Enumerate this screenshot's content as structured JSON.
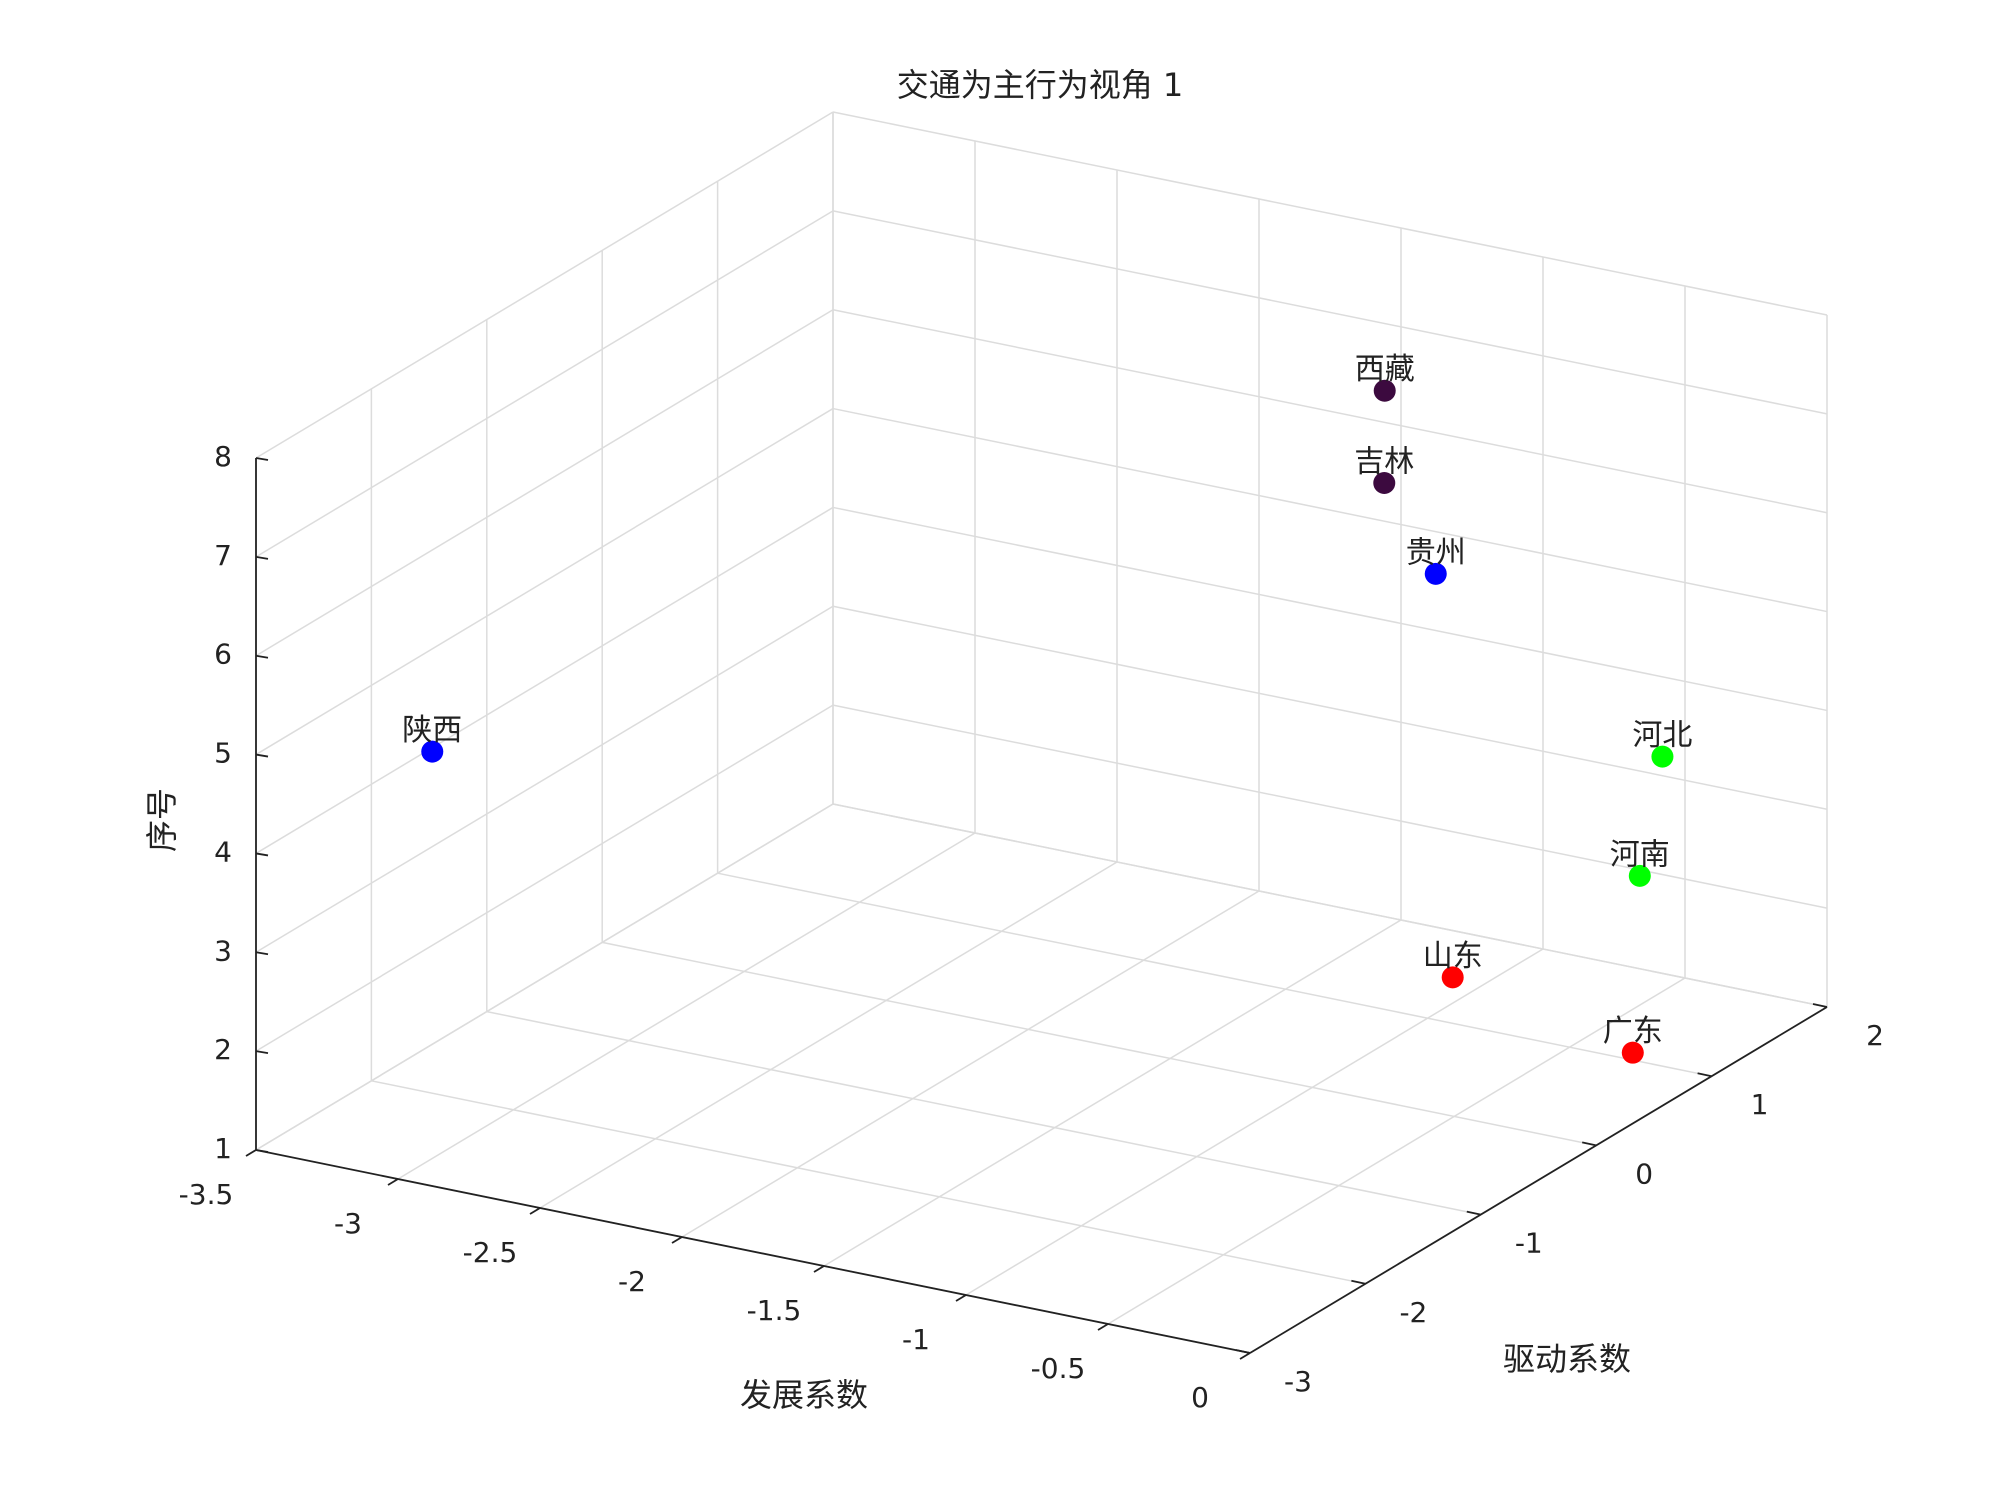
{
  "chart_data": {
    "type": "scatter3d",
    "title": "交通为主行为视角 1",
    "xlabel": "发展系数",
    "ylabel": "驱动系数",
    "zlabel": "序号",
    "labels": [
      "广东",
      "山东",
      "河南",
      "河北",
      "陕西",
      "贵州",
      "吉林",
      "西藏"
    ],
    "x": [
      -0.31,
      -0.68,
      -0.2,
      -0.23,
      -3.05,
      -0.76,
      -0.86,
      -0.83
    ],
    "y": [
      1.08,
      0.43,
      0.87,
      1.14,
      -2.58,
      0.48,
      0.28,
      0.21
    ],
    "z": [
      1,
      2,
      3,
      4,
      5,
      6,
      7,
      8
    ],
    "colors": [
      "#ff0000",
      "#ff0000",
      "#00ff00",
      "#00ff00",
      "#0000ff",
      "#0000ff",
      "#3c0a3f",
      "#3c0a3f"
    ],
    "xlim": [
      -3.5,
      0
    ],
    "ylim": [
      -3,
      2
    ],
    "zlim": [
      1,
      8
    ],
    "xticks": [
      -3.5,
      -3,
      -2.5,
      -2,
      -1.5,
      -1,
      -0.5,
      0
    ],
    "yticks": [
      -3,
      -2,
      -1,
      0,
      1,
      2
    ],
    "zticks": [
      1,
      2,
      3,
      4,
      5,
      6,
      7,
      8
    ],
    "grid": true
  }
}
